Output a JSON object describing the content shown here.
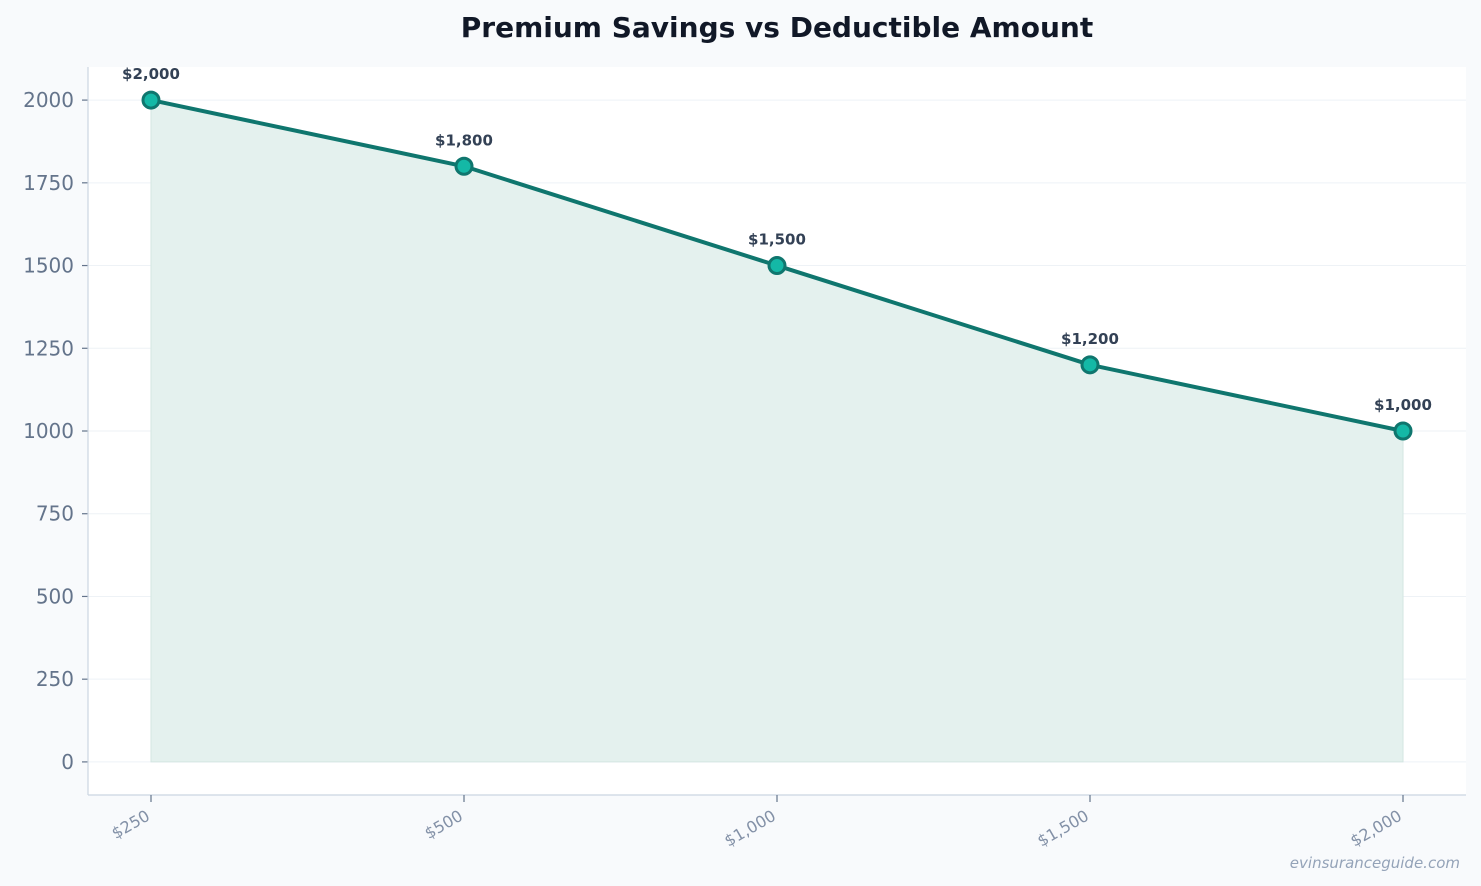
{
  "chart_data": {
    "type": "area",
    "title": "Premium Savings vs Deductible Amount",
    "xlabel": "",
    "ylabel": "",
    "categories": [
      "$250",
      "$500",
      "$1,000",
      "$1,500",
      "$2,000"
    ],
    "series": [
      {
        "values": [
          2000,
          1800,
          1500,
          1200,
          1000
        ]
      }
    ],
    "data_labels": [
      "$2,000",
      "$1,800",
      "$1,500",
      "$1,200",
      "$1,000"
    ],
    "ylim": [
      -100,
      2100
    ],
    "yticks": [
      0,
      250,
      500,
      750,
      1000,
      1250,
      1500,
      1750,
      2000
    ],
    "grid": true,
    "legend": "none",
    "colors": {
      "line": "#0f766e",
      "marker_fill": "#14b8a6",
      "area_fill": "#e4f1ee",
      "title": "#111827",
      "tick": "#64748b",
      "xtick": "#8391a7",
      "data_label": "#334155",
      "grid": "#eef2f6",
      "axis": "#cbd5e1",
      "watermark": "#94a3b8"
    }
  },
  "watermark": "evinsuranceguide.com"
}
